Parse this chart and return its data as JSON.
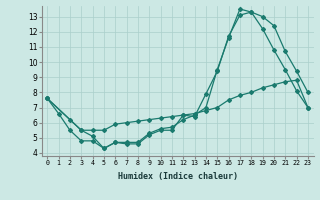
{
  "xlabel": "Humidex (Indice chaleur)",
  "bg_color": "#cce8e4",
  "grid_color": "#aacfcb",
  "line_color": "#1a7a6e",
  "xlim": [
    -0.5,
    23.5
  ],
  "ylim": [
    3.8,
    13.7
  ],
  "yticks": [
    4,
    5,
    6,
    7,
    8,
    9,
    10,
    11,
    12,
    13
  ],
  "xticks": [
    0,
    1,
    2,
    3,
    4,
    5,
    6,
    7,
    8,
    9,
    10,
    11,
    12,
    13,
    14,
    15,
    16,
    17,
    18,
    19,
    20,
    21,
    22,
    23
  ],
  "series1_x": [
    0,
    1,
    2,
    3,
    4,
    5,
    6,
    7,
    8,
    9,
    10,
    11,
    12,
    13,
    14,
    15,
    16,
    17,
    18,
    19,
    20,
    21,
    22,
    23
  ],
  "series1_y": [
    7.6,
    6.6,
    5.5,
    4.8,
    4.8,
    4.3,
    4.7,
    4.6,
    4.6,
    5.2,
    5.5,
    5.5,
    6.5,
    6.4,
    7.9,
    9.4,
    11.7,
    13.1,
    13.3,
    13.0,
    12.4,
    10.7,
    9.4,
    8.0
  ],
  "series2_x": [
    0,
    2,
    3,
    4,
    5,
    6,
    7,
    8,
    9,
    10,
    11,
    12,
    13,
    14,
    15,
    16,
    17,
    18,
    19,
    20,
    21,
    22,
    23
  ],
  "series2_y": [
    7.6,
    6.2,
    5.5,
    5.5,
    5.5,
    5.9,
    6.0,
    6.1,
    6.2,
    6.3,
    6.4,
    6.5,
    6.6,
    6.8,
    7.0,
    7.5,
    7.8,
    8.0,
    8.3,
    8.5,
    8.7,
    8.8,
    7.0
  ],
  "series3_x": [
    0,
    3,
    4,
    5,
    6,
    7,
    8,
    9,
    10,
    11,
    12,
    13,
    14,
    15,
    16,
    17,
    18,
    19,
    20,
    21,
    22,
    23
  ],
  "series3_y": [
    7.6,
    5.5,
    5.1,
    4.3,
    4.7,
    4.7,
    4.7,
    5.3,
    5.6,
    5.7,
    6.2,
    6.5,
    7.0,
    9.5,
    11.6,
    13.5,
    13.3,
    12.2,
    10.8,
    9.5,
    8.1,
    7.0
  ]
}
